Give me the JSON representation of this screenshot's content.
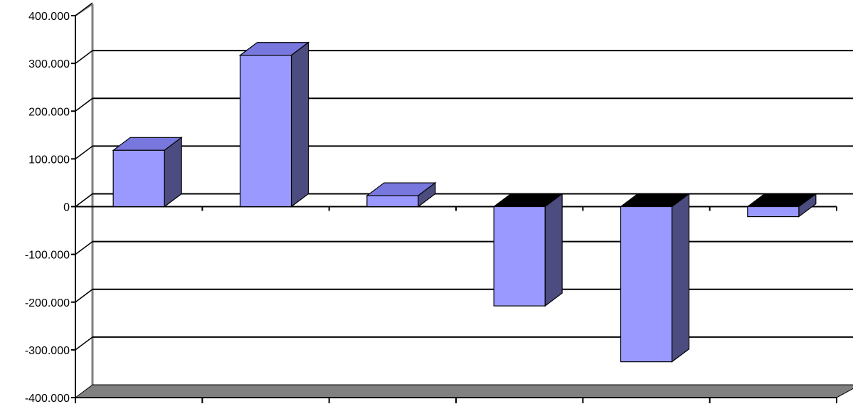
{
  "chart_data": {
    "type": "bar",
    "style": "3d-column",
    "title": "",
    "xlabel": "",
    "ylabel": "",
    "categories": [
      "",
      "",
      "",
      "",
      "",
      ""
    ],
    "series": [
      {
        "values": [
          118000,
          317000,
          23000,
          -208000,
          -325000,
          -21000
        ]
      }
    ],
    "ylim": [
      -400000,
      400000
    ],
    "yticks": [
      "400.000",
      "300.000",
      "200.000",
      "100.000",
      "0",
      "-100.000",
      "-200.000",
      "-300.000",
      "-400.000"
    ],
    "ytick_values": [
      400000,
      300000,
      200000,
      100000,
      0,
      -100000,
      -200000,
      -300000,
      -400000
    ],
    "grid": true,
    "legend": "none",
    "colors": {
      "bar_front": "#9999ff",
      "bar_top": "#7777dd",
      "bar_side": "#4c4c80",
      "bar_top_dark": "#000000",
      "floor": "#808080",
      "wall_edge": "#808080",
      "grid": "#000000"
    }
  }
}
